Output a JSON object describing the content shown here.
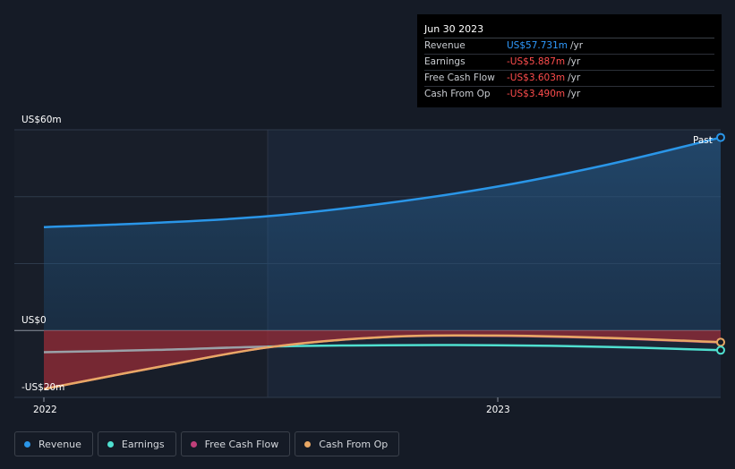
{
  "tooltip": {
    "date": "Jun 30 2023",
    "rows": [
      {
        "label": "Revenue",
        "value": "US$57.731m",
        "unit": "/yr",
        "color": "#2f9bff"
      },
      {
        "label": "Earnings",
        "value": "-US$5.887m",
        "unit": "/yr",
        "color": "#ff4d4d"
      },
      {
        "label": "Free Cash Flow",
        "value": "-US$3.603m",
        "unit": "/yr",
        "color": "#ff4d4d"
      },
      {
        "label": "Cash From Op",
        "value": "-US$3.490m",
        "unit": "/yr",
        "color": "#ff4d4d"
      }
    ]
  },
  "past_label": "Past",
  "legend": [
    {
      "label": "Revenue",
      "color": "#2a96e8"
    },
    {
      "label": "Earnings",
      "color": "#4fe0d0"
    },
    {
      "label": "Free Cash Flow",
      "color": "#c0407a"
    },
    {
      "label": "Cash From Op",
      "color": "#e8a865"
    }
  ],
  "chart_data": {
    "type": "line",
    "ytick_labels": [
      "US$60m",
      "US$0",
      "-US$20m"
    ],
    "yticks": [
      60,
      0,
      -20
    ],
    "ylim": [
      -20,
      60
    ],
    "xtick_labels": [
      "2022",
      "2023"
    ],
    "xticks": [
      2022.0,
      2023.0
    ],
    "xlim": [
      2021.9,
      2023.5
    ],
    "grid": true,
    "legend_position": "bottom",
    "series": [
      {
        "name": "Revenue",
        "color": "#2a96e8",
        "x": [
          2022.0,
          2022.25,
          2022.5,
          2022.75,
          2023.0,
          2023.25,
          2023.5
        ],
        "y": [
          30.9,
          32.2,
          34.2,
          37.9,
          42.9,
          49.6,
          57.7
        ]
      },
      {
        "name": "Earnings",
        "color": "#4fe0d0",
        "x": [
          2022.0,
          2022.25,
          2022.5,
          2022.75,
          2023.0,
          2023.25,
          2023.5
        ],
        "y": [
          -6.5,
          -5.8,
          -4.8,
          -4.4,
          -4.4,
          -4.9,
          -5.9
        ]
      },
      {
        "name": "Free Cash Flow",
        "color": "#c0407a",
        "x": [
          2022.0,
          2022.25,
          2022.5,
          2022.75,
          2023.0,
          2023.25,
          2023.5
        ],
        "y": [
          -17.5,
          -11.0,
          -5.0,
          -2.0,
          -1.6,
          -2.3,
          -3.6
        ]
      },
      {
        "name": "Cash From Op",
        "color": "#e8a865",
        "x": [
          2022.0,
          2022.25,
          2022.5,
          2022.75,
          2023.0,
          2023.25,
          2023.5
        ],
        "y": [
          -17.5,
          -11.0,
          -5.0,
          -2.0,
          -1.5,
          -2.2,
          -3.5
        ]
      }
    ]
  }
}
